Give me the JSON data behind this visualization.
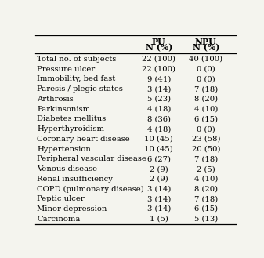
{
  "col_headers": [
    "PU\nN (%)",
    "NPU\nN (%)"
  ],
  "rows": [
    [
      "Total no. of subjects",
      "22 (100)",
      "40 (100)"
    ],
    [
      "Pressure ulcer",
      "22 (100)",
      "0 (0)"
    ],
    [
      "Immobility, bed fast",
      "9 (41)",
      "0 (0)"
    ],
    [
      "Paresis / plegic states",
      "3 (14)",
      "7 (18)"
    ],
    [
      "Arthrosis",
      "5 (23)",
      "8 (20)"
    ],
    [
      "Parkinsonism",
      "4 (18)",
      "4 (10)"
    ],
    [
      "Diabetes mellitus",
      "8 (36)",
      "6 (15)"
    ],
    [
      "Hyperthyroidism",
      "4 (18)",
      "0 (0)"
    ],
    [
      "Coronary heart disease",
      "10 (45)",
      "23 (58)"
    ],
    [
      "Hypertension",
      "10 (45)",
      "20 (50)"
    ],
    [
      "Peripheral vascular disease",
      "6 (27)",
      "7 (18)"
    ],
    [
      "Venous disease",
      "2 (9)",
      "2 (5)"
    ],
    [
      "Renal insufficiency",
      "2 (9)",
      "4 (10)"
    ],
    [
      "COPD (pulmonary disease)",
      "3 (14)",
      "8 (20)"
    ],
    [
      "Peptic ulcer",
      "3 (14)",
      "7 (18)"
    ],
    [
      "Minor depression",
      "3 (14)",
      "6 (15)"
    ],
    [
      "Carcinoma",
      "1 (5)",
      "5 (13)"
    ]
  ],
  "bg_color": "#f4f4ee",
  "font_size": 7.2,
  "header_font_size": 7.8
}
